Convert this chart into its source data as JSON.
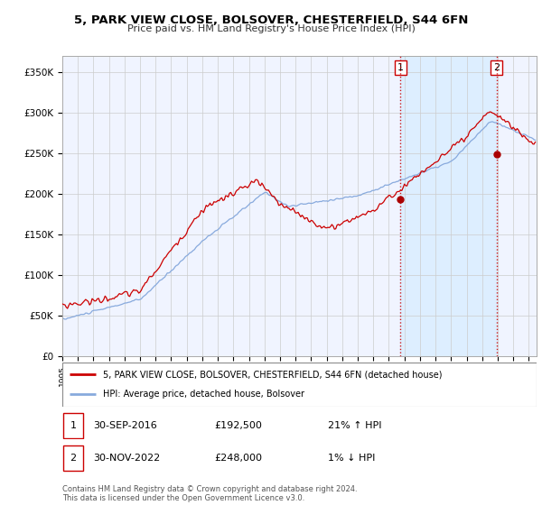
{
  "title": "5, PARK VIEW CLOSE, BOLSOVER, CHESTERFIELD, S44 6FN",
  "subtitle": "Price paid vs. HM Land Registry's House Price Index (HPI)",
  "ylabel_ticks": [
    "£0",
    "£50K",
    "£100K",
    "£150K",
    "£200K",
    "£250K",
    "£300K",
    "£350K"
  ],
  "ytick_values": [
    0,
    50000,
    100000,
    150000,
    200000,
    250000,
    300000,
    350000
  ],
  "ylim": [
    0,
    370000
  ],
  "xlim_start": 1995.0,
  "xlim_end": 2025.5,
  "red_line_color": "#cc0000",
  "blue_line_color": "#88aadd",
  "shade_color": "#ddeeff",
  "marker_color": "#aa0000",
  "vline_color": "#cc0000",
  "transaction1_x": 2016.75,
  "transaction1_y": 192500,
  "transaction1_label": "1",
  "transaction2_x": 2022.916,
  "transaction2_y": 248000,
  "transaction2_label": "2",
  "legend_line1": "5, PARK VIEW CLOSE, BOLSOVER, CHESTERFIELD, S44 6FN (detached house)",
  "legend_line2": "HPI: Average price, detached house, Bolsover",
  "footnote": "Contains HM Land Registry data © Crown copyright and database right 2024.\nThis data is licensed under the Open Government Licence v3.0.",
  "background_color": "#ffffff",
  "grid_color": "#cccccc",
  "chart_bg_color": "#f0f4ff"
}
